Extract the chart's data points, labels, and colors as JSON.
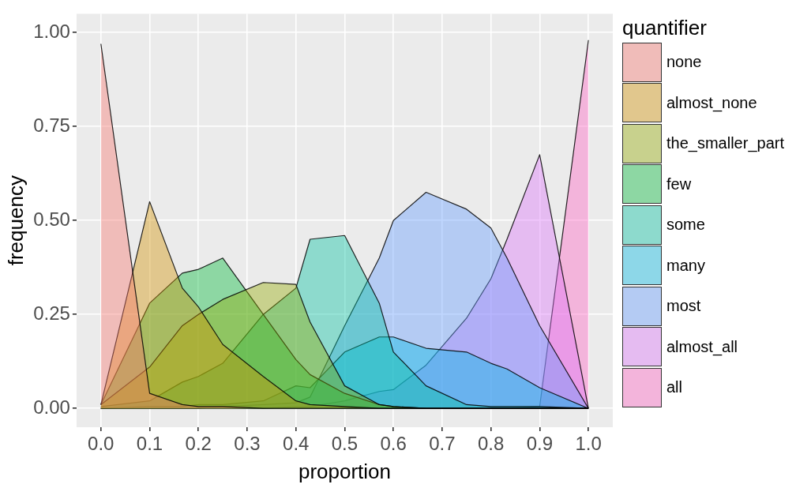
{
  "chart_data": {
    "type": "area",
    "xlabel": "proportion",
    "ylabel": "frequency",
    "legend_title": "quantifier",
    "legend": "right",
    "grid": true,
    "line_style": "solid",
    "marker": "none",
    "x": [
      0,
      0.1,
      0.167,
      0.2,
      0.25,
      0.333,
      0.4,
      0.429,
      0.5,
      0.571,
      0.6,
      0.667,
      0.75,
      0.8,
      0.833,
      0.9,
      1
    ],
    "xlim": [
      -0.05,
      1.05
    ],
    "xticks": [
      {
        "value": 0,
        "label": "0.0"
      },
      0.1,
      0.2,
      0.3,
      0.4,
      0.5,
      0.6,
      0.7,
      0.8,
      0.9,
      {
        "value": 1,
        "label": "1.0"
      }
    ],
    "ylim": [
      -0.05,
      1.05
    ],
    "yticks": [
      {
        "value": 0,
        "label": "0.00"
      },
      0.25,
      {
        "value": 0.5,
        "label": "0.50"
      },
      0.75,
      {
        "value": 1,
        "label": "1.00"
      }
    ],
    "series": [
      {
        "name": "none",
        "color": "#F8766D",
        "values": [
          0.97,
          0.04,
          0.01,
          0.005,
          0.005,
          0,
          0,
          0,
          0,
          0,
          0,
          0,
          0,
          0,
          0,
          0,
          0
        ]
      },
      {
        "name": "almost_none",
        "color": "#D39200",
        "values": [
          0.01,
          0.55,
          0.32,
          0.27,
          0.17,
          0.085,
          0.02,
          0.01,
          0.005,
          0,
          0,
          0,
          0,
          0,
          0,
          0,
          0
        ]
      },
      {
        "name": "the_smaller_part",
        "color": "#93AA00",
        "values": [
          0.01,
          0.11,
          0.22,
          0.25,
          0.29,
          0.335,
          0.33,
          0.23,
          0.06,
          0.01,
          0.005,
          0,
          0,
          0,
          0,
          0,
          0
        ]
      },
      {
        "name": "few",
        "color": "#00BA38",
        "values": [
          0.01,
          0.28,
          0.36,
          0.37,
          0.4,
          0.25,
          0.13,
          0.09,
          0.04,
          0.01,
          0.005,
          0,
          0,
          0,
          0,
          0,
          0
        ]
      },
      {
        "name": "some",
        "color": "#00C19F",
        "values": [
          0.005,
          0.02,
          0.07,
          0.085,
          0.12,
          0.25,
          0.32,
          0.45,
          0.46,
          0.28,
          0.15,
          0.06,
          0.01,
          0.005,
          0.005,
          0.005,
          0
        ]
      },
      {
        "name": "many",
        "color": "#00B9E3",
        "values": [
          0,
          0.005,
          0.005,
          0.01,
          0.01,
          0.02,
          0.06,
          0.055,
          0.15,
          0.19,
          0.19,
          0.16,
          0.15,
          0.12,
          0.105,
          0.055,
          0
        ]
      },
      {
        "name": "most",
        "color": "#619CFF",
        "values": [
          0,
          0,
          0,
          0,
          0.005,
          0.01,
          0.015,
          0.03,
          0.22,
          0.4,
          0.5,
          0.575,
          0.53,
          0.48,
          0.4,
          0.22,
          0
        ]
      },
      {
        "name": "almost_all",
        "color": "#DB72FB",
        "values": [
          0,
          0,
          0,
          0,
          0,
          0,
          0.005,
          0.005,
          0.02,
          0.045,
          0.05,
          0.115,
          0.24,
          0.345,
          0.45,
          0.675,
          0
        ]
      },
      {
        "name": "all",
        "color": "#FF61C3",
        "values": [
          0,
          0,
          0,
          0,
          0,
          0,
          0,
          0,
          0,
          0,
          0,
          0,
          0,
          0,
          0,
          0.005,
          0.98
        ]
      }
    ]
  }
}
